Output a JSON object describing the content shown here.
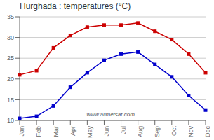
{
  "chart_data": {
    "type": "line",
    "title": "Hurghada : temperatures (°C)",
    "categories": [
      "Jan",
      "Feb",
      "Mar",
      "Apr",
      "May",
      "Jun",
      "Jul",
      "Aug",
      "Sep",
      "Oct",
      "Nov",
      "Dec"
    ],
    "series": [
      {
        "color": "#cc0000",
        "marker": "square",
        "values": [
          21,
          22,
          27.5,
          30.5,
          32.5,
          33,
          33,
          33.5,
          31.5,
          29.5,
          26,
          21.5
        ]
      },
      {
        "color": "#0000cc",
        "marker": "square",
        "values": [
          10.5,
          11,
          13.5,
          18,
          21.5,
          24.5,
          26,
          26.5,
          23.5,
          20.5,
          16,
          12.5
        ]
      }
    ],
    "ylim": [
      10,
      35
    ],
    "yticks": [
      10,
      15,
      20,
      25,
      30,
      35
    ],
    "grid": true,
    "annotation": "www.allmetsat.com"
  }
}
